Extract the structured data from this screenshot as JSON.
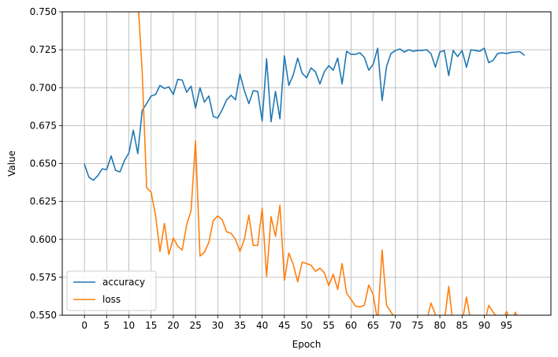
{
  "chart_data": {
    "type": "line",
    "title": "",
    "xlabel": "Epoch",
    "ylabel": "Value",
    "xlim": [
      -5,
      105
    ],
    "ylim": [
      0.55,
      0.75
    ],
    "x_ticks": [
      0,
      5,
      10,
      15,
      20,
      25,
      30,
      35,
      40,
      45,
      50,
      55,
      60,
      65,
      70,
      75,
      80,
      85,
      90,
      95
    ],
    "x_tick_labels": [
      "0",
      "5",
      "10",
      "15",
      "20",
      "25",
      "30",
      "35",
      "40",
      "45",
      "50",
      "55",
      "60",
      "65",
      "70",
      "75",
      "80",
      "85",
      "90",
      "95"
    ],
    "y_ticks": [
      0.55,
      0.575,
      0.6,
      0.625,
      0.65,
      0.675,
      0.7,
      0.725,
      0.75
    ],
    "y_tick_labels": [
      "0.550",
      "0.575",
      "0.600",
      "0.625",
      "0.650",
      "0.675",
      "0.700",
      "0.725",
      "0.750"
    ],
    "grid": true,
    "legend_position": "lower-left",
    "series": [
      {
        "name": "accuracy",
        "color": "#1f77b4",
        "x": [
          0,
          1,
          2,
          3,
          4,
          5,
          6,
          7,
          8,
          9,
          10,
          11,
          12,
          13,
          14,
          15,
          16,
          17,
          18,
          19,
          20,
          21,
          22,
          23,
          24,
          25,
          26,
          27,
          28,
          29,
          30,
          31,
          32,
          33,
          34,
          35,
          36,
          37,
          38,
          39,
          40,
          41,
          42,
          43,
          44,
          45,
          46,
          47,
          48,
          49,
          50,
          51,
          52,
          53,
          54,
          55,
          56,
          57,
          58,
          59,
          60,
          61,
          62,
          63,
          64,
          65,
          66,
          67,
          68,
          69,
          70,
          71,
          72,
          73,
          74,
          75,
          76,
          77,
          78,
          79,
          80,
          81,
          82,
          83,
          84,
          85,
          86,
          87,
          88,
          89,
          90,
          91,
          92,
          93,
          94,
          95,
          96,
          97,
          98,
          99
        ],
        "values": [
          0.6495,
          0.641,
          0.639,
          0.642,
          0.6465,
          0.646,
          0.655,
          0.6455,
          0.6445,
          0.652,
          0.657,
          0.672,
          0.6565,
          0.685,
          0.6895,
          0.6945,
          0.6955,
          0.7015,
          0.6995,
          0.7005,
          0.6955,
          0.7055,
          0.705,
          0.697,
          0.701,
          0.6865,
          0.7,
          0.6905,
          0.6945,
          0.681,
          0.68,
          0.6855,
          0.692,
          0.695,
          0.692,
          0.709,
          0.698,
          0.6895,
          0.698,
          0.6975,
          0.678,
          0.719,
          0.6775,
          0.6975,
          0.6795,
          0.721,
          0.7015,
          0.7085,
          0.7195,
          0.7095,
          0.7065,
          0.713,
          0.7105,
          0.7025,
          0.7105,
          0.7145,
          0.7115,
          0.7195,
          0.7025,
          0.724,
          0.722,
          0.722,
          0.723,
          0.72,
          0.7115,
          0.7155,
          0.726,
          0.6915,
          0.714,
          0.7225,
          0.7245,
          0.7255,
          0.7235,
          0.725,
          0.724,
          0.7245,
          0.7245,
          0.725,
          0.7225,
          0.7135,
          0.7235,
          0.7245,
          0.708,
          0.7245,
          0.7205,
          0.7245,
          0.7135,
          0.725,
          0.7245,
          0.724,
          0.726,
          0.7165,
          0.718,
          0.7225,
          0.723,
          0.7225,
          0.7232,
          0.7235,
          0.7237,
          0.7215
        ]
      },
      {
        "name": "loss",
        "color": "#ff7f0e",
        "x": [
          12,
          13,
          14,
          15,
          16,
          17,
          18,
          19,
          20,
          21,
          22,
          23,
          24,
          25,
          26,
          27,
          28,
          29,
          30,
          31,
          32,
          33,
          34,
          35,
          36,
          37,
          38,
          39,
          40,
          41,
          42,
          43,
          44,
          45,
          46,
          47,
          48,
          49,
          50,
          51,
          52,
          53,
          54,
          55,
          56,
          57,
          58,
          59,
          60,
          61,
          62,
          63,
          64,
          65,
          66,
          67,
          68,
          69,
          70,
          77,
          78,
          79,
          80,
          81,
          82,
          83,
          84,
          85,
          86,
          87,
          88,
          89,
          90,
          91,
          92,
          93,
          94,
          95,
          96,
          97,
          98
        ],
        "values": [
          0.76,
          0.71,
          0.634,
          0.631,
          0.616,
          0.592,
          0.6105,
          0.59,
          0.601,
          0.5955,
          0.593,
          0.6095,
          0.619,
          0.665,
          0.589,
          0.5915,
          0.598,
          0.6125,
          0.6155,
          0.613,
          0.605,
          0.604,
          0.6,
          0.592,
          0.6,
          0.616,
          0.596,
          0.596,
          0.6205,
          0.5755,
          0.615,
          0.602,
          0.6225,
          0.573,
          0.591,
          0.5835,
          0.572,
          0.585,
          0.584,
          0.583,
          0.579,
          0.581,
          0.578,
          0.5695,
          0.577,
          0.567,
          0.584,
          0.5645,
          0.5605,
          0.556,
          0.5555,
          0.5565,
          0.57,
          0.5635,
          0.546,
          0.593,
          0.5565,
          0.552,
          0.548,
          0.546,
          0.558,
          0.5505,
          0.54,
          0.5455,
          0.569,
          0.543,
          0.538,
          0.545,
          0.562,
          0.545,
          0.543,
          0.544,
          0.544,
          0.5565,
          0.552,
          0.548,
          0.544,
          0.5525,
          0.545,
          0.552,
          0.545
        ]
      }
    ]
  }
}
